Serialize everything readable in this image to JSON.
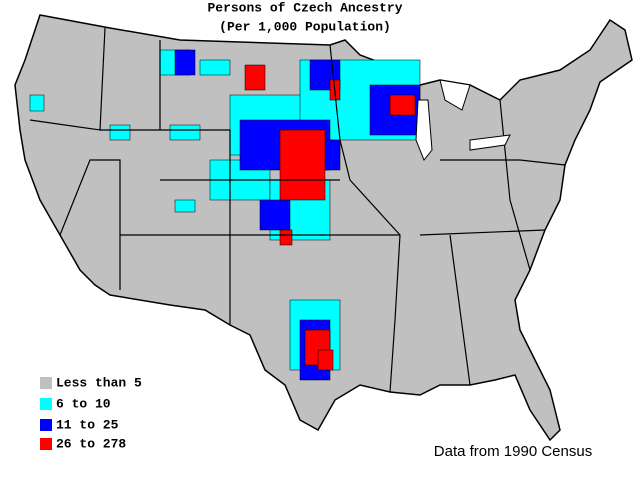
{
  "title": "Persons of Czech Ancestry",
  "subtitle": "(Per 1,000 Population)",
  "legend": [
    {
      "label": "Less than 5",
      "color": "#c0c0c0"
    },
    {
      "label": "6 to 10",
      "color": "#00ffff"
    },
    {
      "label": "11 to 25",
      "color": "#0000ff"
    },
    {
      "label": "26 to 278",
      "color": "#ff0000"
    }
  ],
  "source": "Data from 1990 Census"
}
